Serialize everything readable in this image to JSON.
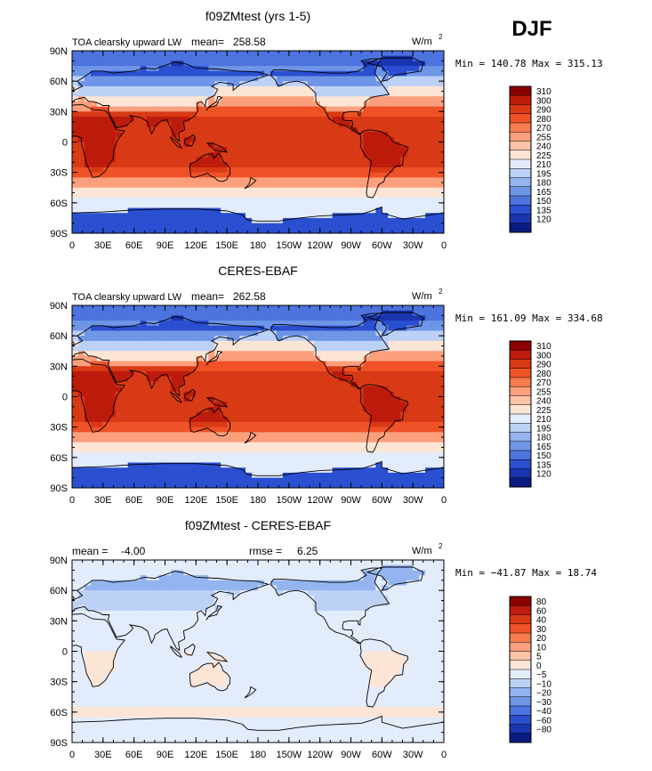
{
  "season": "DJF",
  "panels": [
    {
      "title": "f09ZMtest (yrs 1-5)",
      "left_label": "TOA clearsky upward LW",
      "stat1_label": "mean=",
      "stat1_value": "258.58",
      "stat2_label": "",
      "stat2_value": "",
      "units": "W/m",
      "units_exp": "2",
      "minmax": "Min = 140.78 Max = 315.13",
      "palette": "abs"
    },
    {
      "title": "CERES-EBAF",
      "left_label": "TOA clearsky upward LW",
      "stat1_label": "mean=",
      "stat1_value": "262.58",
      "stat2_label": "",
      "stat2_value": "",
      "units": "W/m",
      "units_exp": "2",
      "minmax": "Min = 161.09 Max = 334.68",
      "palette": "abs"
    },
    {
      "title": "f09ZMtest - CERES-EBAF",
      "left_label": "",
      "stat1_label": "mean =",
      "stat1_value": "-4.00",
      "stat2_label": "rmse =",
      "stat2_value": "6.25",
      "units": "W/m",
      "units_exp": "2",
      "minmax": "Min = −41.87 Max =  18.74",
      "palette": "diff"
    }
  ],
  "lat_ticks": [
    "90N",
    "60N",
    "30N",
    "0",
    "30S",
    "60S",
    "90S"
  ],
  "lon_ticks": [
    "0",
    "30E",
    "60E",
    "90E",
    "120E",
    "150E",
    "180",
    "150W",
    "120W",
    "90W",
    "60W",
    "30W",
    "0"
  ],
  "colorbars": {
    "abs": {
      "labels": [
        "310",
        "300",
        "290",
        "280",
        "270",
        "255",
        "240",
        "225",
        "210",
        "195",
        "180",
        "165",
        "150",
        "135",
        "120"
      ],
      "colors": [
        "#8b0000",
        "#bd1b0c",
        "#d83a16",
        "#ee5226",
        "#f77b4d",
        "#fb9f7d",
        "#fcc3a6",
        "#fde5d6",
        "#e3ecfb",
        "#bcd1f6",
        "#94b4ef",
        "#6e95e6",
        "#4c73de",
        "#2a4fd0",
        "#1935b0",
        "#0a1a80"
      ]
    },
    "diff": {
      "labels": [
        "80",
        "60",
        "40",
        "30",
        "20",
        "10",
        "5",
        "0",
        "−5",
        "−10",
        "−20",
        "−30",
        "−40",
        "−60",
        "−80"
      ],
      "colors": [
        "#8b0000",
        "#bd1b0c",
        "#d83a16",
        "#ee5226",
        "#f77b4d",
        "#fb9f7d",
        "#fcc3a6",
        "#fde5d6",
        "#e3ecfb",
        "#bcd1f6",
        "#94b4ef",
        "#6e95e6",
        "#4c73de",
        "#2a4fd0",
        "#1935b0",
        "#0a1a80"
      ]
    }
  }
}
